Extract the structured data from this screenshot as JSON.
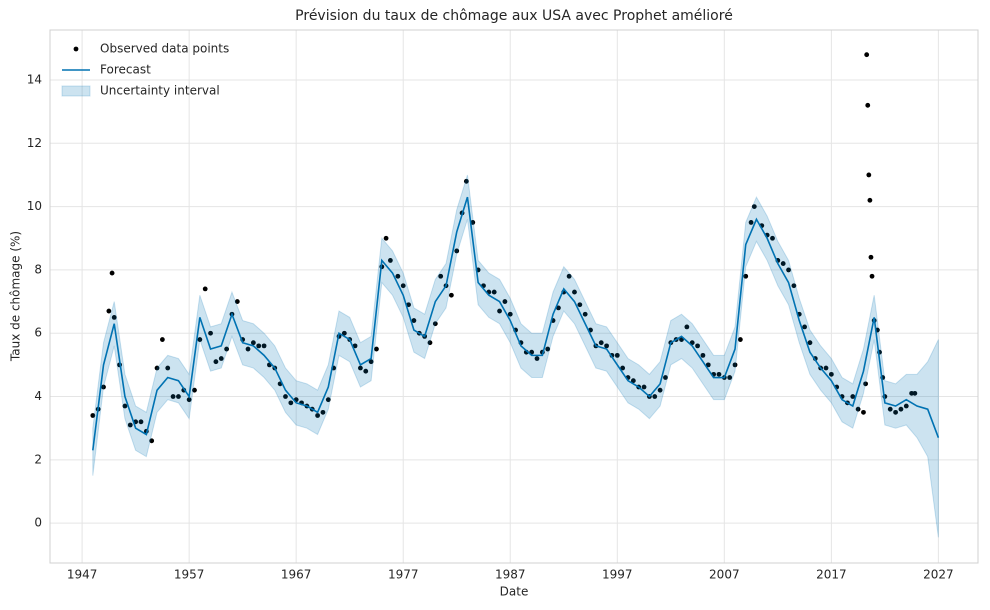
{
  "chart_data": {
    "type": "line",
    "title": "Prévision du taux de chômage aux USA avec Prophet amélioré",
    "xlabel": "Date",
    "ylabel": "Taux de chômage (%)",
    "xlim": [
      1944.0,
      2030.7
    ],
    "ylim": [
      -1.26,
      15.58
    ],
    "xticks": [
      1947,
      1957,
      1967,
      1977,
      1987,
      1997,
      2007,
      2017,
      2027
    ],
    "yticks": [
      0,
      2,
      4,
      6,
      8,
      10,
      12,
      14
    ],
    "grid": true,
    "legend": "upper left",
    "series": [
      {
        "name": "Observed data points",
        "type": "scatter",
        "color": "#000000",
        "x": [
          1948.0,
          1948.5,
          1949.0,
          1949.5,
          1949.8,
          1950.0,
          1950.5,
          1951.0,
          1951.5,
          1952.0,
          1952.5,
          1953.0,
          1953.5,
          1954.0,
          1954.5,
          1955.0,
          1955.5,
          1956.0,
          1956.5,
          1957.0,
          1957.5,
          1958.0,
          1958.5,
          1959.0,
          1959.5,
          1960.0,
          1960.5,
          1961.0,
          1961.5,
          1962.0,
          1962.5,
          1963.0,
          1963.5,
          1964.0,
          1964.5,
          1965.0,
          1965.5,
          1966.0,
          1966.5,
          1967.0,
          1967.5,
          1968.0,
          1968.5,
          1969.0,
          1969.5,
          1970.0,
          1970.5,
          1971.0,
          1971.5,
          1972.0,
          1972.5,
          1973.0,
          1973.5,
          1974.0,
          1974.5,
          1975.0,
          1975.4,
          1975.8,
          1976.5,
          1977.0,
          1977.5,
          1978.0,
          1978.5,
          1979.0,
          1979.5,
          1980.0,
          1980.5,
          1981.0,
          1981.5,
          1982.0,
          1982.5,
          1982.9,
          1983.5,
          1984.0,
          1984.5,
          1985.0,
          1985.5,
          1986.0,
          1986.5,
          1987.0,
          1987.5,
          1988.0,
          1988.5,
          1989.0,
          1989.5,
          1990.0,
          1990.5,
          1991.0,
          1991.5,
          1992.0,
          1992.5,
          1993.0,
          1993.5,
          1994.0,
          1994.5,
          1995.0,
          1995.5,
          1996.0,
          1996.5,
          1997.0,
          1997.5,
          1998.0,
          1998.5,
          1999.0,
          1999.5,
          2000.0,
          2000.5,
          2001.0,
          2001.5,
          2002.0,
          2002.5,
          2003.0,
          2003.5,
          2004.0,
          2004.5,
          2005.0,
          2005.5,
          2006.0,
          2006.5,
          2007.0,
          2007.5,
          2008.0,
          2008.5,
          2009.0,
          2009.5,
          2009.8,
          2010.5,
          2011.0,
          2011.5,
          2012.0,
          2012.5,
          2013.0,
          2013.5,
          2014.0,
          2014.5,
          2015.0,
          2015.5,
          2016.0,
          2016.5,
          2017.0,
          2017.5,
          2018.0,
          2018.5,
          2019.0,
          2019.5,
          2020.0,
          2020.2,
          2020.3,
          2020.4,
          2020.5,
          2020.6,
          2020.7,
          2020.8,
          2021.0,
          2021.3,
          2021.5,
          2021.8,
          2022.0,
          2022.5,
          2023.0,
          2023.5,
          2024.0,
          2024.5,
          2024.8
        ],
        "values": [
          3.4,
          3.6,
          4.3,
          6.7,
          7.9,
          6.5,
          5.0,
          3.7,
          3.1,
          3.2,
          3.2,
          2.9,
          2.6,
          4.9,
          5.8,
          4.9,
          4.0,
          4.0,
          4.2,
          3.9,
          4.2,
          5.8,
          7.4,
          6.0,
          5.1,
          5.2,
          5.5,
          6.6,
          7.0,
          5.8,
          5.5,
          5.7,
          5.6,
          5.6,
          5.0,
          4.9,
          4.4,
          4.0,
          3.8,
          3.9,
          3.8,
          3.7,
          3.6,
          3.4,
          3.5,
          3.9,
          4.9,
          5.9,
          6.0,
          5.8,
          5.6,
          4.9,
          4.8,
          5.1,
          5.5,
          8.1,
          9.0,
          8.3,
          7.8,
          7.5,
          6.9,
          6.4,
          6.0,
          5.9,
          5.7,
          6.3,
          7.8,
          7.5,
          7.2,
          8.6,
          9.8,
          10.8,
          9.5,
          8.0,
          7.5,
          7.3,
          7.3,
          6.7,
          7.0,
          6.6,
          6.1,
          5.7,
          5.4,
          5.4,
          5.2,
          5.4,
          5.5,
          6.4,
          6.8,
          7.3,
          7.8,
          7.3,
          6.9,
          6.6,
          6.1,
          5.6,
          5.7,
          5.6,
          5.3,
          5.3,
          4.9,
          4.6,
          4.5,
          4.3,
          4.3,
          4.0,
          4.0,
          4.2,
          4.6,
          5.7,
          5.8,
          5.8,
          6.2,
          5.7,
          5.6,
          5.3,
          5.0,
          4.7,
          4.7,
          4.6,
          4.6,
          5.0,
          5.8,
          7.8,
          9.5,
          10.0,
          9.4,
          9.1,
          9.0,
          8.3,
          8.2,
          8.0,
          7.5,
          6.6,
          6.2,
          5.7,
          5.2,
          4.9,
          4.9,
          4.7,
          4.3,
          4.0,
          3.8,
          4.0,
          3.6,
          3.5,
          4.4,
          14.8,
          13.2,
          11.0,
          10.2,
          8.4,
          7.8,
          6.4,
          6.1,
          5.4,
          4.6,
          4.0,
          3.6,
          3.5,
          3.6,
          3.7,
          4.1,
          4.1
        ]
      },
      {
        "name": "Forecast",
        "type": "line",
        "color": "#0072B2",
        "x": [
          1948,
          1949,
          1950,
          1951,
          1952,
          1953,
          1954,
          1955,
          1956,
          1957,
          1958,
          1959,
          1960,
          1961,
          1962,
          1963,
          1964,
          1965,
          1966,
          1967,
          1968,
          1969,
          1970,
          1971,
          1972,
          1973,
          1974,
          1975,
          1976,
          1977,
          1978,
          1979,
          1980,
          1981,
          1982,
          1983,
          1984,
          1985,
          1986,
          1987,
          1988,
          1989,
          1990,
          1991,
          1992,
          1993,
          1994,
          1995,
          1996,
          1997,
          1998,
          1999,
          2000,
          2001,
          2002,
          2003,
          2004,
          2005,
          2006,
          2007,
          2008,
          2009,
          2010,
          2011,
          2012,
          2013,
          2014,
          2015,
          2016,
          2017,
          2018,
          2019,
          2020,
          2021,
          2022,
          2023,
          2024,
          2025,
          2026,
          2027
        ],
        "values": [
          2.3,
          5.0,
          6.3,
          4.0,
          3.0,
          2.8,
          4.2,
          4.6,
          4.5,
          4.0,
          6.5,
          5.5,
          5.6,
          6.6,
          5.7,
          5.6,
          5.3,
          4.9,
          4.2,
          3.8,
          3.7,
          3.5,
          4.3,
          6.0,
          5.8,
          5.0,
          5.2,
          8.3,
          7.9,
          7.2,
          6.1,
          5.9,
          7.0,
          7.5,
          9.2,
          10.3,
          7.6,
          7.2,
          7.0,
          6.4,
          5.6,
          5.3,
          5.3,
          6.6,
          7.4,
          7.0,
          6.3,
          5.6,
          5.5,
          5.0,
          4.5,
          4.3,
          4.0,
          4.4,
          5.7,
          5.9,
          5.6,
          5.1,
          4.6,
          4.6,
          5.5,
          8.8,
          9.6,
          9.0,
          8.2,
          7.6,
          6.4,
          5.4,
          4.9,
          4.5,
          3.9,
          3.7,
          4.8,
          6.5,
          3.8,
          3.7,
          3.9,
          3.7,
          3.6,
          2.7
        ],
        "band": {
          "name": "Uncertainty interval",
          "lower": [
            1.5,
            4.3,
            5.6,
            3.3,
            2.3,
            2.1,
            3.5,
            3.9,
            3.8,
            3.3,
            5.8,
            4.8,
            4.9,
            5.9,
            5.0,
            4.9,
            4.6,
            4.2,
            3.5,
            3.1,
            3.0,
            2.8,
            3.6,
            5.3,
            5.1,
            4.3,
            4.5,
            7.6,
            7.2,
            6.5,
            5.4,
            5.2,
            6.3,
            6.8,
            8.5,
            9.6,
            6.9,
            6.5,
            6.3,
            5.7,
            4.9,
            4.6,
            4.6,
            5.9,
            6.7,
            6.3,
            5.6,
            4.9,
            4.8,
            4.3,
            3.8,
            3.6,
            3.3,
            3.7,
            5.0,
            5.2,
            4.9,
            4.4,
            3.9,
            3.9,
            4.8,
            8.1,
            8.9,
            8.3,
            7.5,
            6.9,
            5.7,
            4.7,
            4.2,
            3.8,
            3.2,
            3.0,
            4.1,
            5.8,
            3.1,
            3.0,
            3.1,
            2.7,
            2.1,
            -0.45
          ],
          "upper": [
            3.0,
            5.7,
            7.0,
            4.7,
            3.7,
            3.5,
            4.9,
            5.3,
            5.2,
            4.7,
            7.2,
            6.2,
            6.3,
            7.3,
            6.4,
            6.3,
            6.0,
            5.6,
            4.9,
            4.5,
            4.4,
            4.2,
            5.0,
            6.7,
            6.5,
            5.7,
            5.9,
            9.0,
            8.6,
            7.9,
            6.8,
            6.6,
            7.7,
            8.2,
            9.9,
            11.0,
            8.3,
            7.9,
            7.7,
            7.1,
            6.3,
            6.0,
            6.0,
            7.3,
            8.1,
            7.7,
            7.0,
            6.3,
            6.2,
            5.7,
            5.2,
            5.0,
            4.7,
            5.1,
            6.4,
            6.6,
            6.3,
            5.8,
            5.3,
            5.3,
            6.2,
            9.5,
            10.3,
            9.7,
            8.9,
            8.3,
            7.1,
            6.1,
            5.6,
            5.2,
            4.6,
            4.4,
            5.5,
            7.2,
            4.5,
            4.4,
            4.7,
            4.7,
            5.1,
            5.8
          ]
        }
      }
    ]
  }
}
